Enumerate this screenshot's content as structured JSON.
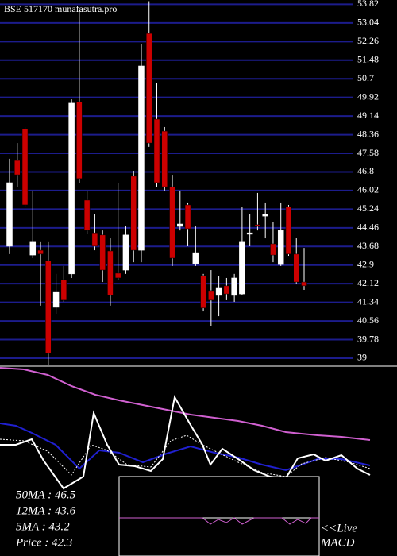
{
  "chart_data": {
    "type": "candlestick",
    "title": "BSE 517170 munafasutra.pro",
    "ylim": [
      38.7,
      54.0
    ],
    "yticks": [
      53.82,
      53.04,
      52.26,
      51.48,
      50.7,
      49.92,
      49.14,
      48.36,
      47.58,
      46.8,
      46.02,
      45.24,
      44.46,
      43.68,
      42.9,
      42.12,
      41.34,
      40.56,
      39.78,
      39
    ],
    "grid": true,
    "grid_color": "#1c1c8c",
    "up_color": "#ffffff",
    "down_color": "#cc0000",
    "open": [
      43.69,
      47.28,
      48.61,
      43.32,
      43.52,
      43.09,
      41.13,
      42.29,
      42.53,
      49.74,
      45.62,
      44.25,
      44.16,
      43.49,
      42.56,
      42.69,
      46.62,
      43.52,
      52.6,
      49.01,
      48.51,
      46.18,
      44.52,
      45.42,
      42.96,
      42.46,
      41.83,
      41.63,
      42.03,
      41.63,
      41.69,
      44.19,
      44.59,
      44.95,
      43.79,
      42.92,
      45.35,
      43.36,
      42.19
    ],
    "high": [
      47.35,
      48.01,
      48.68,
      46.02,
      43.86,
      43.86,
      42.53,
      42.86,
      49.84,
      53.67,
      46.02,
      45.02,
      44.35,
      44.02,
      46.35,
      44.52,
      46.85,
      52.17,
      53.95,
      50.51,
      48.68,
      46.68,
      46.02,
      45.52,
      44.52,
      42.53,
      42.69,
      42.43,
      42.36,
      42.53,
      45.35,
      45.02,
      45.92,
      45.52,
      44.69,
      45.52,
      45.42,
      44.02,
      43.62
    ],
    "low": [
      43.36,
      46.18,
      45.35,
      43.19,
      41.2,
      38.7,
      40.86,
      41.36,
      42.36,
      46.35,
      44.19,
      43.52,
      42.19,
      41.2,
      42.29,
      42.53,
      43.02,
      43.02,
      47.85,
      46.18,
      46.02,
      42.86,
      44.35,
      43.69,
      42.86,
      40.96,
      40.36,
      40.76,
      41.43,
      41.36,
      41.63,
      43.69,
      44.35,
      44.02,
      43.02,
      42.86,
      43.29,
      42.13,
      41.86
    ],
    "close": [
      46.35,
      46.68,
      45.42,
      43.86,
      43.36,
      39.2,
      41.79,
      41.43,
      49.68,
      46.52,
      44.35,
      43.69,
      42.69,
      41.63,
      42.36,
      44.16,
      43.52,
      51.24,
      48.01,
      46.35,
      46.18,
      43.19,
      44.62,
      44.42,
      43.42,
      41.1,
      41.43,
      41.96,
      41.69,
      42.36,
      43.86,
      44.25,
      44.52,
      45.02,
      43.32,
      44.35,
      43.36,
      42.19,
      42.03
    ],
    "indicators": [
      "50MA : 46.5",
      "12MA : 43.6",
      "5MA : 43.2",
      "Price   : 42.3"
    ],
    "live_label": "<<Live",
    "macd_label": "MACD"
  }
}
